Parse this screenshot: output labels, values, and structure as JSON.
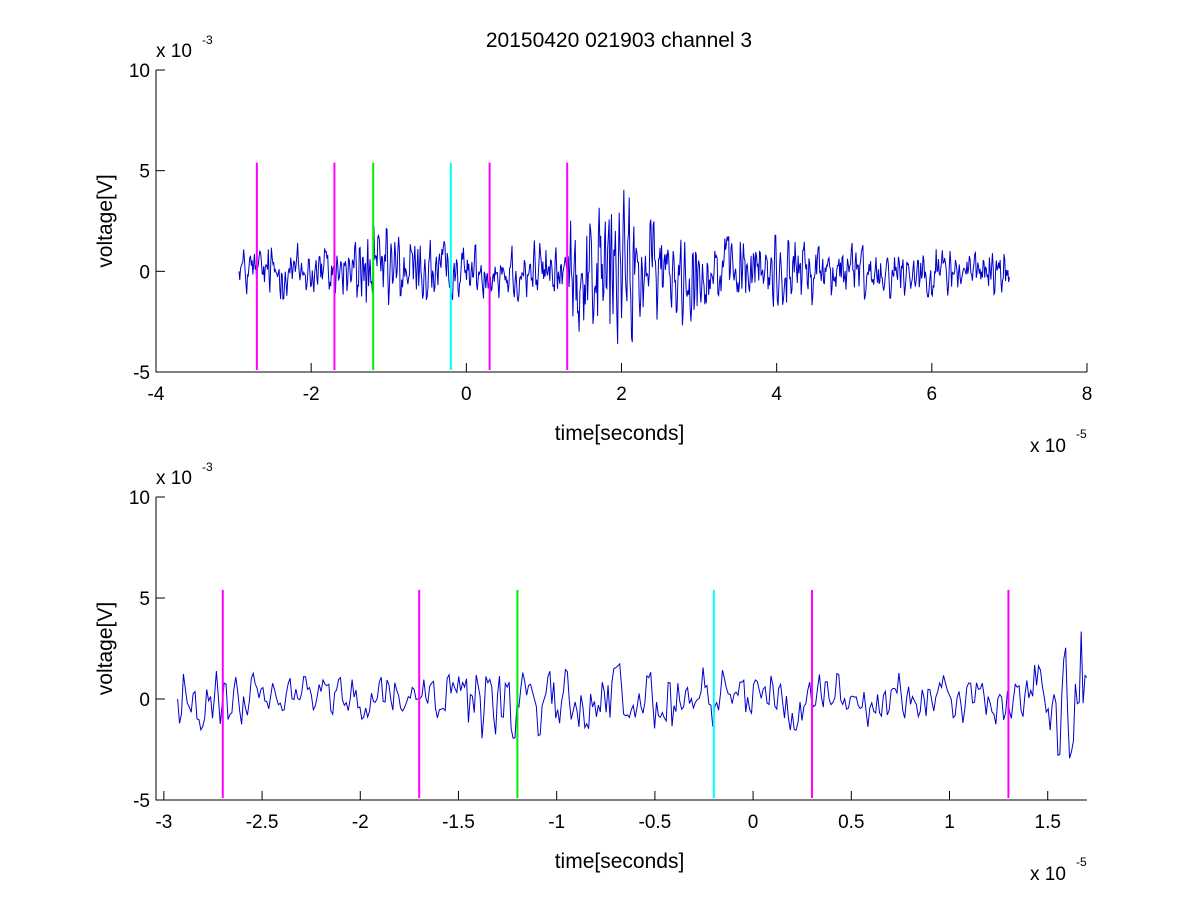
{
  "chart_data": [
    {
      "type": "line",
      "title": "20150420 021903 channel 3",
      "xlabel": "time[seconds]",
      "ylabel": "voltage[V]",
      "x_exponent_label": "x 10",
      "x_exponent_power": "-5",
      "y_exponent_label": "x 10",
      "y_exponent_power": "-3",
      "xlim": [
        -4,
        8
      ],
      "ylim": [
        -5,
        10
      ],
      "xticks": [
        -4,
        -2,
        0,
        2,
        4,
        6,
        8
      ],
      "xtick_labels": [
        "-4",
        "-2",
        "0",
        "2",
        "4",
        "6",
        "8"
      ],
      "yticks": [
        -5,
        0,
        5,
        10
      ],
      "ytick_labels": [
        "-5",
        "0",
        "5",
        "10"
      ],
      "grid": false,
      "series": [
        {
          "color": "#0000cc",
          "x_range": [
            -2.93,
            7.0
          ],
          "envelope": [
            [
              -2.93,
              1.2
            ],
            [
              -2.5,
              1.3
            ],
            [
              -1.6,
              1.4
            ],
            [
              -1.3,
              2.2
            ],
            [
              -1.0,
              2.0
            ],
            [
              -0.5,
              1.6
            ],
            [
              0.0,
              1.2
            ],
            [
              0.8,
              1.5
            ],
            [
              1.25,
              1.3
            ],
            [
              1.3,
              2.2
            ],
            [
              1.6,
              3.5
            ],
            [
              1.8,
              4.3
            ],
            [
              2.0,
              4.0
            ],
            [
              2.3,
              2.6
            ],
            [
              2.6,
              2.0
            ],
            [
              2.8,
              2.6
            ],
            [
              3.2,
              1.6
            ],
            [
              3.8,
              1.8
            ],
            [
              4.2,
              1.6
            ],
            [
              4.6,
              1.6
            ],
            [
              5.2,
              1.3
            ],
            [
              6.0,
              1.2
            ],
            [
              7.0,
              1.1
            ]
          ]
        }
      ],
      "markers": [
        {
          "x": -2.7,
          "color": "#ff00ff"
        },
        {
          "x": -1.7,
          "color": "#ff00ff"
        },
        {
          "x": -1.2,
          "color": "#00ee00"
        },
        {
          "x": -0.2,
          "color": "#00ffff"
        },
        {
          "x": 0.3,
          "color": "#ff00ff"
        },
        {
          "x": 1.3,
          "color": "#ff00ff"
        }
      ],
      "marker_yrange": [
        -4.9,
        5.4
      ]
    },
    {
      "type": "line",
      "title": "",
      "xlabel": "time[seconds]",
      "ylabel": "voltage[V]",
      "x_exponent_label": "x 10",
      "x_exponent_power": "-5",
      "y_exponent_label": "x 10",
      "y_exponent_power": "-3",
      "xlim": [
        -3.04,
        1.7
      ],
      "ylim": [
        -5,
        10
      ],
      "xticks": [
        -3,
        -2.5,
        -2,
        -1.5,
        -1,
        -0.5,
        0,
        0.5,
        1,
        1.5
      ],
      "xtick_labels": [
        "-3",
        "-2.5",
        "-2",
        "-1.5",
        "-1",
        "-0.5",
        "0",
        "0.5",
        "1",
        "1.5"
      ],
      "yticks": [
        -5,
        0,
        5,
        10
      ],
      "ytick_labels": [
        "-5",
        "0",
        "5",
        "10"
      ],
      "grid": false,
      "series": [
        {
          "color": "#0000cc",
          "x_range": [
            -2.93,
            1.7
          ],
          "envelope": [
            [
              -2.93,
              1.3
            ],
            [
              -2.7,
              1.6
            ],
            [
              -2.5,
              1.1
            ],
            [
              -2.0,
              1.0
            ],
            [
              -1.6,
              1.1
            ],
            [
              -1.4,
              2.2
            ],
            [
              -1.2,
              1.8
            ],
            [
              -1.0,
              1.9
            ],
            [
              -0.6,
              1.6
            ],
            [
              -0.3,
              1.5
            ],
            [
              0.0,
              1.4
            ],
            [
              0.3,
              1.5
            ],
            [
              0.6,
              1.3
            ],
            [
              1.0,
              1.1
            ],
            [
              1.25,
              1.2
            ],
            [
              1.35,
              1.8
            ],
            [
              1.5,
              2.2
            ],
            [
              1.6,
              4.0
            ],
            [
              1.7,
              3.0
            ]
          ]
        }
      ],
      "markers": [
        {
          "x": -2.7,
          "color": "#ff00ff"
        },
        {
          "x": -1.7,
          "color": "#ff00ff"
        },
        {
          "x": -1.2,
          "color": "#00ee00"
        },
        {
          "x": -0.2,
          "color": "#00ffff"
        },
        {
          "x": 0.3,
          "color": "#ff00ff"
        },
        {
          "x": 1.3,
          "color": "#ff00ff"
        }
      ],
      "marker_yrange": [
        -4.9,
        5.4
      ]
    }
  ]
}
